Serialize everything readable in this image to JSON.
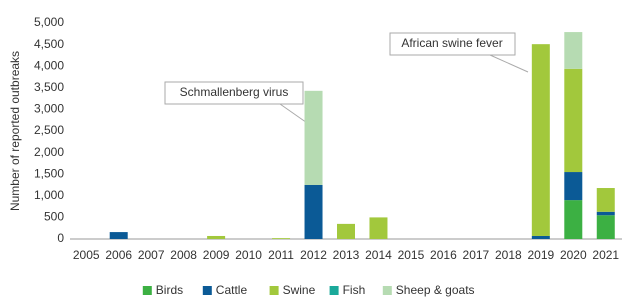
{
  "chart_data": {
    "type": "stacked_bar",
    "y_label": "Number of reported outbreaks",
    "categories": [
      "2005",
      "2006",
      "2007",
      "2008",
      "2009",
      "2010",
      "2011",
      "2012",
      "2013",
      "2014",
      "2015",
      "2016",
      "2017",
      "2018",
      "2019",
      "2020",
      "2021"
    ],
    "series": [
      {
        "name": "Birds",
        "color": "#3cb043",
        "values": [
          0,
          0,
          0,
          0,
          0,
          0,
          0,
          0,
          0,
          0,
          0,
          0,
          0,
          0,
          0,
          900,
          550
        ]
      },
      {
        "name": "Cattle",
        "color": "#0b5a96",
        "values": [
          0,
          160,
          0,
          0,
          0,
          0,
          0,
          1250,
          0,
          0,
          0,
          0,
          0,
          0,
          70,
          650,
          80
        ]
      },
      {
        "name": "Swine",
        "color": "#a2c83c",
        "values": [
          0,
          0,
          0,
          0,
          70,
          0,
          20,
          0,
          350,
          500,
          0,
          0,
          0,
          0,
          4440,
          2390,
          550
        ]
      },
      {
        "name": "Fish",
        "color": "#1aa99a",
        "values": [
          0,
          0,
          0,
          0,
          0,
          0,
          0,
          0,
          0,
          0,
          0,
          0,
          0,
          0,
          0,
          0,
          0
        ]
      },
      {
        "name": "Sheep & goats",
        "color": "#b6dbb2",
        "values": [
          0,
          0,
          0,
          0,
          0,
          0,
          0,
          2180,
          0,
          0,
          0,
          0,
          0,
          0,
          0,
          850,
          0
        ]
      }
    ],
    "ylim": [
      0,
      5000
    ],
    "yticks": [
      0,
      500,
      {
        "value": 1000,
        "label": "1,000"
      },
      {
        "value": 1500,
        "label": "1,500"
      },
      {
        "value": 2000,
        "label": "2,000"
      },
      {
        "value": 2500,
        "label": "2,500"
      },
      {
        "value": 3000,
        "label": "3,000"
      },
      {
        "value": 3500,
        "label": "3,500"
      },
      {
        "value": 4000,
        "label": "4,000"
      },
      {
        "value": 4500,
        "label": "4,500"
      },
      {
        "value": 5000,
        "label": "5,000"
      }
    ],
    "grid": false,
    "legend": "bottom",
    "annotations": [
      "Schmallenberg virus",
      "African swine fever"
    ]
  }
}
